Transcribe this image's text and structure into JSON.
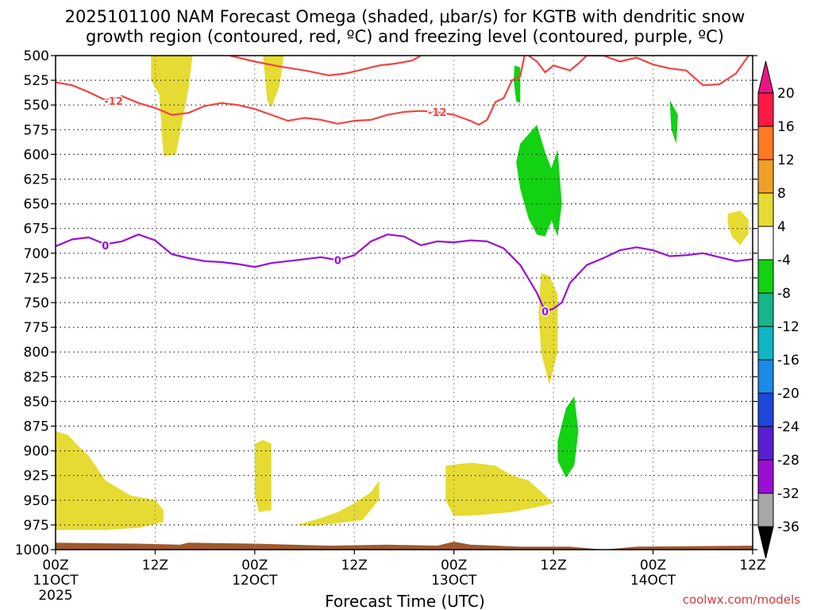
{
  "title_line1": "2025101100 NAM Forecast Omega (shaded, μbar/s) for KGTB with dendritic snow",
  "title_line2": "growth region (contoured, red, ºC) and freezing level (contoured, purple, ºC)",
  "credit": "coolwx.com/models",
  "colors": {
    "dgz_contour": "#f2453f",
    "freezing_contour": "#9a0fd4",
    "terrain": "#a0582c",
    "omega_positive": "#e6db32",
    "omega_negative": "#12d212",
    "grid": "#888888"
  },
  "chart_data": {
    "type": "heatmap",
    "subtype": "time-height cross section",
    "xlabel": "Forecast Time (UTC)",
    "x_ticks": [
      {
        "hour": 0,
        "label": "00Z",
        "sublabel": "11OCT",
        "year": "2025"
      },
      {
        "hour": 12,
        "label": "12Z"
      },
      {
        "hour": 24,
        "label": "00Z",
        "sublabel": "12OCT"
      },
      {
        "hour": 36,
        "label": "12Z"
      },
      {
        "hour": 48,
        "label": "00Z",
        "sublabel": "13OCT"
      },
      {
        "hour": 60,
        "label": "12Z"
      },
      {
        "hour": 72,
        "label": "00Z",
        "sublabel": "14OCT"
      },
      {
        "hour": 84,
        "label": "12Z"
      }
    ],
    "x_range_hours": [
      0,
      84
    ],
    "y_ticks_hpa": [
      500,
      525,
      550,
      575,
      600,
      625,
      650,
      675,
      700,
      725,
      750,
      775,
      800,
      825,
      850,
      875,
      900,
      925,
      950,
      975,
      1000
    ],
    "y_range_hpa": [
      500,
      1000
    ],
    "colorbar": {
      "labels": [
        "20",
        "16",
        "12",
        "8",
        "4",
        "-4",
        "-8",
        "-12",
        "-16",
        "-20",
        "-24",
        "-28",
        "-32",
        "-36"
      ],
      "colors": [
        "#ff1a45",
        "#ff7820",
        "#f0a028",
        "#e6db32",
        "#ffffff",
        "#12d212",
        "#17b58a",
        "#10b4c2",
        "#1a8be6",
        "#1c48dc",
        "#5a1fd0",
        "#9a0fd4",
        "#a7a7a7"
      ]
    },
    "contours": [
      {
        "name": "dgz_minus12",
        "label": "-12",
        "label_positions": [
          [
            7,
            546
          ],
          [
            46,
            557
          ]
        ],
        "points": [
          [
            0,
            527
          ],
          [
            2,
            530
          ],
          [
            4,
            537
          ],
          [
            6,
            545
          ],
          [
            8,
            541
          ],
          [
            10,
            548
          ],
          [
            12,
            553
          ],
          [
            14,
            560
          ],
          [
            16,
            558
          ],
          [
            18,
            551
          ],
          [
            20,
            548
          ],
          [
            22,
            550
          ],
          [
            24,
            554
          ],
          [
            26,
            560
          ],
          [
            28,
            566
          ],
          [
            30,
            563
          ],
          [
            32,
            565
          ],
          [
            34,
            569
          ],
          [
            36,
            566
          ],
          [
            38,
            565
          ],
          [
            40,
            560
          ],
          [
            42,
            557
          ],
          [
            44,
            556
          ],
          [
            46,
            557
          ],
          [
            48,
            560
          ],
          [
            50,
            566
          ],
          [
            51,
            570
          ],
          [
            52,
            565
          ],
          [
            53,
            547
          ],
          [
            54,
            543
          ],
          [
            55,
            525
          ],
          [
            56,
            521
          ],
          [
            56.5,
            500
          ]
        ]
      },
      {
        "name": "dgz_minus12_upper_left",
        "label": "",
        "label_positions": [],
        "points": [
          [
            21,
            500
          ],
          [
            24,
            506
          ],
          [
            27,
            511
          ],
          [
            30,
            515
          ],
          [
            33,
            520
          ],
          [
            35,
            518
          ],
          [
            37,
            514
          ],
          [
            39,
            510
          ],
          [
            41,
            508
          ],
          [
            43,
            505
          ],
          [
            44,
            500
          ]
        ]
      },
      {
        "name": "dgz_minus12_upper_right",
        "label": "",
        "label_positions": [],
        "points": [
          [
            57,
            500
          ],
          [
            58,
            506
          ],
          [
            59,
            517
          ],
          [
            60,
            510
          ],
          [
            62,
            515
          ],
          [
            63,
            508
          ],
          [
            64,
            500
          ],
          [
            66,
            500
          ],
          [
            68,
            506
          ],
          [
            70,
            502
          ],
          [
            72,
            509
          ],
          [
            74,
            513
          ],
          [
            76,
            515
          ],
          [
            78,
            530
          ],
          [
            80,
            529
          ],
          [
            82,
            518
          ],
          [
            83.5,
            500
          ]
        ]
      },
      {
        "name": "freezing_level_0",
        "label": "0",
        "label_positions": [
          [
            6,
            692
          ],
          [
            34,
            707
          ],
          [
            59,
            759
          ]
        ],
        "points": [
          [
            0,
            693
          ],
          [
            2,
            686
          ],
          [
            4,
            684
          ],
          [
            6,
            691
          ],
          [
            8,
            688
          ],
          [
            10,
            681
          ],
          [
            12,
            687
          ],
          [
            14,
            701
          ],
          [
            16,
            705
          ],
          [
            18,
            708
          ],
          [
            20,
            709
          ],
          [
            22,
            711
          ],
          [
            24,
            714
          ],
          [
            26,
            710
          ],
          [
            28,
            708
          ],
          [
            30,
            706
          ],
          [
            32,
            704
          ],
          [
            34,
            707
          ],
          [
            36,
            702
          ],
          [
            38,
            688
          ],
          [
            40,
            681
          ],
          [
            42,
            683
          ],
          [
            44,
            692
          ],
          [
            46,
            688
          ],
          [
            48,
            689
          ],
          [
            50,
            687
          ],
          [
            52,
            688
          ],
          [
            54,
            695
          ],
          [
            56,
            712
          ],
          [
            58,
            740
          ],
          [
            59,
            759
          ],
          [
            60,
            756
          ],
          [
            61,
            750
          ],
          [
            62,
            730
          ],
          [
            64,
            712
          ],
          [
            66,
            705
          ],
          [
            68,
            697
          ],
          [
            70,
            694
          ],
          [
            72,
            697
          ],
          [
            74,
            703
          ],
          [
            76,
            702
          ],
          [
            78,
            700
          ],
          [
            80,
            704
          ],
          [
            82,
            708
          ],
          [
            84,
            706
          ]
        ]
      }
    ],
    "omega_regions": [
      {
        "sign": "positive",
        "value_bin": "4 to 8",
        "points": [
          [
            11.5,
            500
          ],
          [
            16.5,
            500
          ],
          [
            16,
            535
          ],
          [
            14.5,
            600
          ],
          [
            13,
            602
          ],
          [
            12.5,
            540
          ],
          [
            11.5,
            525
          ]
        ]
      },
      {
        "sign": "positive",
        "value_bin": "4 to 8",
        "points": [
          [
            25,
            500
          ],
          [
            27.5,
            500
          ],
          [
            27,
            530
          ],
          [
            26,
            553
          ],
          [
            25.5,
            545
          ]
        ]
      },
      {
        "sign": "positive",
        "value_bin": "4 to 8",
        "points": [
          [
            0,
            880
          ],
          [
            1.5,
            884
          ],
          [
            2.5,
            893
          ],
          [
            4,
            905
          ],
          [
            6,
            930
          ],
          [
            9,
            945
          ],
          [
            12,
            950
          ],
          [
            13,
            960
          ],
          [
            13,
            972
          ],
          [
            10,
            978
          ],
          [
            6,
            980
          ],
          [
            0,
            980
          ]
        ]
      },
      {
        "sign": "positive",
        "value_bin": "4 to 8",
        "points": [
          [
            24,
            893
          ],
          [
            25,
            889
          ],
          [
            26,
            893
          ],
          [
            26,
            960
          ],
          [
            24.5,
            962
          ],
          [
            24,
            945
          ]
        ]
      },
      {
        "sign": "positive",
        "value_bin": "4 to 8",
        "points": [
          [
            29,
            975
          ],
          [
            32,
            968
          ],
          [
            34,
            962
          ],
          [
            36,
            953
          ],
          [
            38,
            942
          ],
          [
            39,
            930
          ],
          [
            39,
            949
          ],
          [
            37,
            970
          ],
          [
            31,
            976
          ]
        ]
      },
      {
        "sign": "positive",
        "value_bin": "4 to 8",
        "points": [
          [
            47,
            915
          ],
          [
            50,
            912
          ],
          [
            53,
            915
          ],
          [
            55,
            925
          ],
          [
            57,
            930
          ],
          [
            59,
            945
          ],
          [
            60,
            953
          ],
          [
            58,
            957
          ],
          [
            55,
            962
          ],
          [
            51,
            965
          ],
          [
            48,
            966
          ],
          [
            47,
            950
          ]
        ]
      },
      {
        "sign": "positive",
        "value_bin": "4 to 8",
        "points": [
          [
            58.5,
            720
          ],
          [
            59.5,
            723
          ],
          [
            60.5,
            742
          ],
          [
            60.5,
            800
          ],
          [
            59.5,
            833
          ],
          [
            58.5,
            800
          ],
          [
            58.2,
            760
          ]
        ]
      },
      {
        "sign": "positive",
        "value_bin": "4 to 8",
        "points": [
          [
            81,
            660
          ],
          [
            82.5,
            657
          ],
          [
            83.5,
            666
          ],
          [
            83.5,
            680
          ],
          [
            82.5,
            692
          ],
          [
            81.5,
            683
          ],
          [
            81,
            670
          ]
        ]
      },
      {
        "sign": "negative",
        "value_bin": "-4 to -8",
        "points": [
          [
            55.3,
            510
          ],
          [
            56,
            512
          ],
          [
            56,
            548
          ],
          [
            55.5,
            546
          ],
          [
            55.2,
            525
          ]
        ]
      },
      {
        "sign": "negative",
        "value_bin": "-4 to -8",
        "points": [
          [
            56,
            589
          ],
          [
            58,
            570
          ],
          [
            59,
            598
          ],
          [
            60,
            620
          ],
          [
            60,
            662
          ],
          [
            59,
            683
          ],
          [
            58,
            681
          ],
          [
            57,
            665
          ],
          [
            56,
            635
          ],
          [
            55.5,
            608
          ]
        ]
      },
      {
        "sign": "negative",
        "value_bin": "-4 to -8",
        "points": [
          [
            59.5,
            620
          ],
          [
            60.5,
            595
          ],
          [
            61,
            650
          ],
          [
            60.5,
            683
          ],
          [
            59.8,
            668
          ]
        ]
      },
      {
        "sign": "negative",
        "value_bin": "-4 to -8",
        "points": [
          [
            60.5,
            890
          ],
          [
            61.5,
            857
          ],
          [
            62.5,
            845
          ],
          [
            63,
            880
          ],
          [
            62.5,
            915
          ],
          [
            61.5,
            927
          ],
          [
            60.5,
            910
          ]
        ]
      },
      {
        "sign": "negative",
        "value_bin": "-4 to -8",
        "points": [
          [
            74,
            545
          ],
          [
            75,
            560
          ],
          [
            74.8,
            589
          ],
          [
            74.2,
            575
          ]
        ]
      }
    ],
    "terrain_top_hpa": [
      [
        0,
        993
      ],
      [
        10,
        994
      ],
      [
        15,
        995
      ],
      [
        16,
        993
      ],
      [
        24,
        994
      ],
      [
        33,
        996
      ],
      [
        40,
        995
      ],
      [
        46,
        996
      ],
      [
        48,
        992
      ],
      [
        50,
        995
      ],
      [
        53,
        996
      ],
      [
        56,
        997
      ],
      [
        62,
        997
      ],
      [
        66,
        1000
      ],
      [
        70,
        997
      ],
      [
        84,
        996
      ]
    ]
  }
}
